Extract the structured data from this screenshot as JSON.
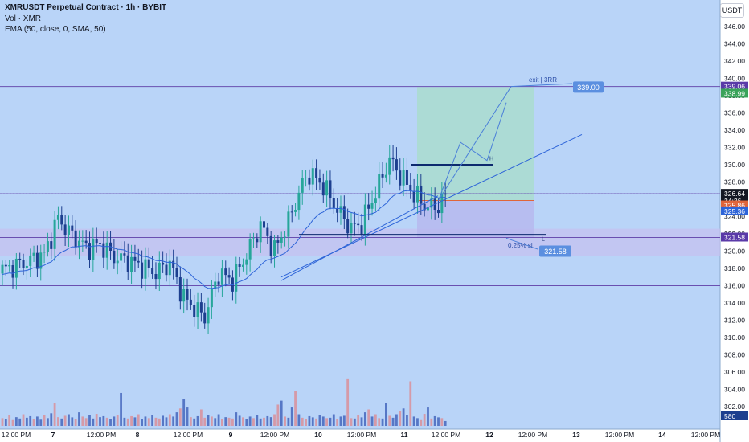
{
  "header": {
    "title": "XMRUSDT Perpetual Contract · 1h · BYBIT",
    "vol_label": "Vol · XMR",
    "ema_label": "EMA (50, close, 0, SMA, 50)"
  },
  "currency_button": "USDT",
  "colors": {
    "background": "#b9d4f8",
    "up_candle": "#26a69a",
    "down_candle": "#1d3f8f",
    "volume_up": "#5677c6",
    "volume_down": "#d59aa8",
    "level_line": "#6a4fb0",
    "ema": "#2d64d8",
    "target_zone": "#a9dccf",
    "stop_zone": "#c5c2f0"
  },
  "chart_data": {
    "type": "candlestick",
    "symbol": "XMRUSDT Perpetual Contract",
    "timeframe": "1h",
    "exchange": "BYBIT",
    "y_ticks": [
      "302.00",
      "304.00",
      "306.00",
      "308.00",
      "310.00",
      "312.00",
      "314.00",
      "316.00",
      "318.00",
      "320.00",
      "322.00",
      "324.00",
      "326.00",
      "328.00",
      "330.00",
      "332.00",
      "334.00",
      "336.00",
      "338.00",
      "340.00",
      "342.00",
      "344.00",
      "346.00"
    ],
    "ylim": [
      300.5,
      347.5
    ],
    "x_ticks": [
      "12:00 PM",
      "7",
      "12:00 PM",
      "8",
      "12:00 PM",
      "9",
      "12:00 PM",
      "10",
      "12:00 PM",
      "11",
      "12:00 PM",
      "12",
      "12:00 PM",
      "13",
      "12:00 PM",
      "14",
      "12:00 PM"
    ],
    "bars_shown": 128,
    "close_path": [
      [
        0,
        317.8
      ],
      [
        6,
        318.6
      ],
      [
        12,
        319.6
      ],
      [
        16,
        323.8
      ],
      [
        19,
        322.2
      ],
      [
        24,
        320.4
      ],
      [
        28,
        320.8
      ],
      [
        32,
        319.3
      ],
      [
        36,
        318.9
      ],
      [
        40,
        318.2
      ],
      [
        44,
        317.5
      ],
      [
        48,
        318.6
      ],
      [
        52,
        314.6
      ],
      [
        56,
        313.0
      ],
      [
        58,
        312.4
      ],
      [
        62,
        317.4
      ],
      [
        66,
        316.6
      ],
      [
        70,
        319.6
      ],
      [
        74,
        323.0
      ],
      [
        78,
        320.1
      ],
      [
        82,
        323.4
      ],
      [
        86,
        327.8
      ],
      [
        88,
        329.0
      ],
      [
        92,
        327.6
      ],
      [
        96,
        324.8
      ],
      [
        100,
        322.6
      ],
      [
        103,
        323.2
      ],
      [
        107,
        326.8
      ],
      [
        111,
        330.6
      ],
      [
        114,
        328.8
      ],
      [
        117,
        327.1
      ],
      [
        121,
        325.3
      ],
      [
        124,
        325.0
      ],
      [
        127,
        326.3
      ]
    ],
    "volume_max": 580,
    "volume": [
      40,
      35,
      55,
      30,
      45,
      38,
      60,
      42,
      50,
      36,
      48,
      32,
      55,
      40,
      65,
      120,
      45,
      38,
      52,
      60,
      44,
      35,
      70,
      48,
      40,
      55,
      38,
      62,
      45,
      50,
      42,
      36,
      48,
      55,
      170,
      42,
      38,
      50,
      44,
      60,
      35,
      48,
      40,
      55,
      42,
      38,
      52,
      44,
      60,
      48,
      70,
      90,
      140,
      95,
      45,
      38,
      50,
      85,
      42,
      55,
      48,
      40,
      60,
      35,
      45,
      42,
      38,
      70,
      52,
      44,
      36,
      48,
      40,
      55,
      38,
      42,
      50,
      45,
      60,
      110,
      130,
      48,
      42,
      95,
      180,
      60,
      42,
      36,
      50,
      44,
      38,
      55,
      48,
      40,
      42,
      60,
      36,
      48,
      52,
      245,
      40,
      38,
      55,
      44,
      70,
      85,
      48,
      60,
      40,
      38,
      120,
      52,
      42,
      60,
      78,
      90,
      55,
      230,
      48,
      40,
      30,
      62,
      95,
      38,
      50,
      44,
      40,
      25
    ],
    "ema": {
      "label": "EMA (50, close, 0, SMA, 50)",
      "last": 325.36
    },
    "horizontal_levels": [
      339.06,
      326.64,
      321.58,
      316.0
    ],
    "price_labels": [
      {
        "text": "339.06",
        "price": 339.06,
        "color": "#5a3aa8"
      },
      {
        "text": "338.99",
        "price": 338.99,
        "color": "#3aa35a"
      },
      {
        "text": "326.64",
        "price": 326.64,
        "color": "#131722"
      },
      {
        "text": "34:36",
        "price": 326.64,
        "color": "#131722"
      },
      {
        "text": "325.86",
        "price": 325.86,
        "color": "#e0653a"
      },
      {
        "text": "325.36",
        "price": 325.36,
        "color": "#2d64d8"
      },
      {
        "text": "321.58",
        "price": 321.58,
        "color": "#5a3aa8"
      },
      {
        "text": "580",
        "price": 301.2,
        "color": "#1d3f8f"
      }
    ],
    "annotations": [
      {
        "text": "exit | 3RR",
        "price": 339.6,
        "x": 640
      },
      {
        "text": "339.00",
        "price": 339.0,
        "x": 730
      },
      {
        "text": "H",
        "price": 330.5,
        "x": 609
      },
      {
        "text": "L",
        "price": 321.2,
        "x": 674
      },
      {
        "text": "0.25% sl",
        "price": 320.4,
        "x": 632
      },
      {
        "text": "321.58",
        "price": 320.0,
        "x": 694
      }
    ],
    "position": {
      "entry": 325.86,
      "target": 339.0,
      "stop": 321.58,
      "reward_risk": "3RR"
    }
  }
}
